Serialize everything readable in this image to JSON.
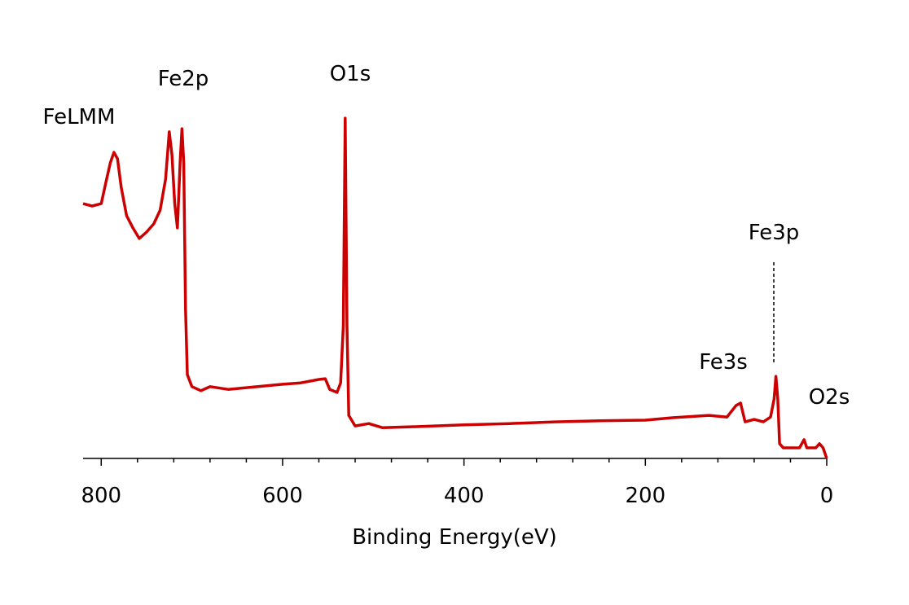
{
  "chart_data": {
    "type": "line",
    "xlabel": "Binding Energy(eV)",
    "xlim": [
      820,
      0
    ],
    "xticks": [
      800,
      600,
      400,
      200,
      0
    ],
    "xminorticks": [
      760,
      720,
      680,
      640,
      560,
      520,
      480,
      440,
      360,
      320,
      280,
      240,
      160,
      120,
      80,
      40
    ],
    "ylim": [
      0,
      100
    ],
    "annotations": [
      "FeLMM",
      "Fe2p",
      "O1s",
      "Fe3p",
      "Fe3s",
      "O2s"
    ],
    "series": [
      {
        "color": "#cc0000",
        "x": [
          820,
          810,
          800,
          795,
          790,
          786,
          782,
          778,
          772,
          765,
          758,
          750,
          742,
          735,
          729,
          725,
          722,
          719,
          716,
          713,
          711,
          709,
          707,
          705,
          700,
          690,
          680,
          660,
          640,
          620,
          600,
          580,
          560,
          553,
          548,
          540,
          536,
          533,
          531,
          529,
          527,
          520,
          505,
          490,
          450,
          400,
          350,
          300,
          250,
          200,
          170,
          130,
          110,
          100,
          95,
          90,
          80,
          70,
          62,
          58,
          56,
          54,
          52,
          48,
          30,
          25,
          22,
          12,
          8,
          4,
          0
        ],
        "values": [
          74.5,
          73.8,
          74.5,
          80.5,
          86.4,
          89.5,
          87.6,
          79.3,
          71,
          67.4,
          64.3,
          66.2,
          68.6,
          72.6,
          81.7,
          95.5,
          88.8,
          74.5,
          67.4,
          86.4,
          96.4,
          86.4,
          43.6,
          24.5,
          21,
          19.8,
          21,
          20.2,
          20.7,
          21.2,
          21.7,
          22.1,
          23.1,
          23.3,
          20.2,
          19.3,
          22.1,
          38.8,
          99.5,
          38.8,
          12.6,
          9.5,
          10.2,
          9,
          9.3,
          9.8,
          10.2,
          10.7,
          11,
          11.2,
          11.9,
          12.6,
          12.1,
          15.5,
          16.2,
          10.7,
          11.4,
          10.7,
          12.1,
          17.4,
          24,
          17.4,
          4.3,
          3.1,
          3.1,
          5.5,
          3.1,
          3.1,
          4.3,
          3.1,
          0
        ]
      }
    ]
  }
}
